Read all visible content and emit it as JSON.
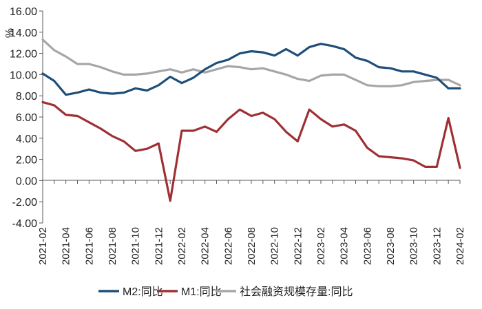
{
  "chart_data": {
    "type": "line",
    "ylabel": "%",
    "ylim": [
      -4,
      16
    ],
    "yticks": [
      "16.00",
      "14.00",
      "12.00",
      "10.00",
      "8.00",
      "6.00",
      "4.00",
      "2.00",
      "0.00",
      "-2.00",
      "-4.00"
    ],
    "ytick_values": [
      16,
      14,
      12,
      10,
      8,
      6,
      4,
      2,
      0,
      -2,
      -4
    ],
    "x": [
      "2021-02",
      "2021-03",
      "2021-04",
      "2021-05",
      "2021-06",
      "2021-07",
      "2021-08",
      "2021-09",
      "2021-10",
      "2021-11",
      "2021-12",
      "2022-01",
      "2022-02",
      "2022-03",
      "2022-04",
      "2022-05",
      "2022-06",
      "2022-07",
      "2022-08",
      "2022-09",
      "2022-10",
      "2022-11",
      "2022-12",
      "2023-01",
      "2023-02",
      "2023-03",
      "2023-04",
      "2023-05",
      "2023-06",
      "2023-07",
      "2023-08",
      "2023-09",
      "2023-10",
      "2023-11",
      "2023-12",
      "2024-01",
      "2024-02"
    ],
    "xtick_labels": [
      "2021-02",
      "2021-04",
      "2021-06",
      "2021-08",
      "2021-10",
      "2021-12",
      "2022-02",
      "2022-04",
      "2022-06",
      "2022-08",
      "2022-10",
      "2022-12",
      "2023-02",
      "2023-04",
      "2023-06",
      "2023-08",
      "2023-10",
      "2023-12",
      "2024-02"
    ],
    "grid": false,
    "legend_position": "bottom",
    "series": [
      {
        "name": "M2:同比",
        "color": "#1f4e79",
        "values": [
          10.1,
          9.4,
          8.1,
          8.3,
          8.6,
          8.3,
          8.2,
          8.3,
          8.7,
          8.5,
          9.0,
          9.8,
          9.2,
          9.7,
          10.5,
          11.1,
          11.4,
          12.0,
          12.2,
          12.1,
          11.8,
          12.4,
          11.8,
          12.6,
          12.9,
          12.7,
          12.4,
          11.6,
          11.3,
          10.7,
          10.6,
          10.3,
          10.3,
          10.0,
          9.7,
          8.7,
          8.7
        ]
      },
      {
        "name": "M1:同比",
        "color": "#9e3034",
        "values": [
          7.4,
          7.1,
          6.2,
          6.1,
          5.5,
          4.9,
          4.2,
          3.7,
          2.8,
          3.0,
          3.5,
          -1.9,
          4.7,
          4.7,
          5.1,
          4.6,
          5.8,
          6.7,
          6.1,
          6.4,
          5.8,
          4.6,
          3.7,
          6.7,
          5.8,
          5.1,
          5.3,
          4.7,
          3.1,
          2.3,
          2.2,
          2.1,
          1.9,
          1.3,
          1.3,
          5.9,
          1.2
        ]
      },
      {
        "name": "社会融资规模存量:同比",
        "color": "#a6a6a6",
        "values": [
          13.3,
          12.3,
          11.7,
          11.0,
          11.0,
          10.7,
          10.3,
          10.0,
          10.0,
          10.1,
          10.3,
          10.5,
          10.2,
          10.5,
          10.2,
          10.5,
          10.8,
          10.7,
          10.5,
          10.6,
          10.3,
          10.0,
          9.6,
          9.4,
          9.9,
          10.0,
          10.0,
          9.5,
          9.0,
          8.9,
          8.9,
          9.0,
          9.3,
          9.4,
          9.5,
          9.5,
          9.0
        ]
      }
    ]
  }
}
